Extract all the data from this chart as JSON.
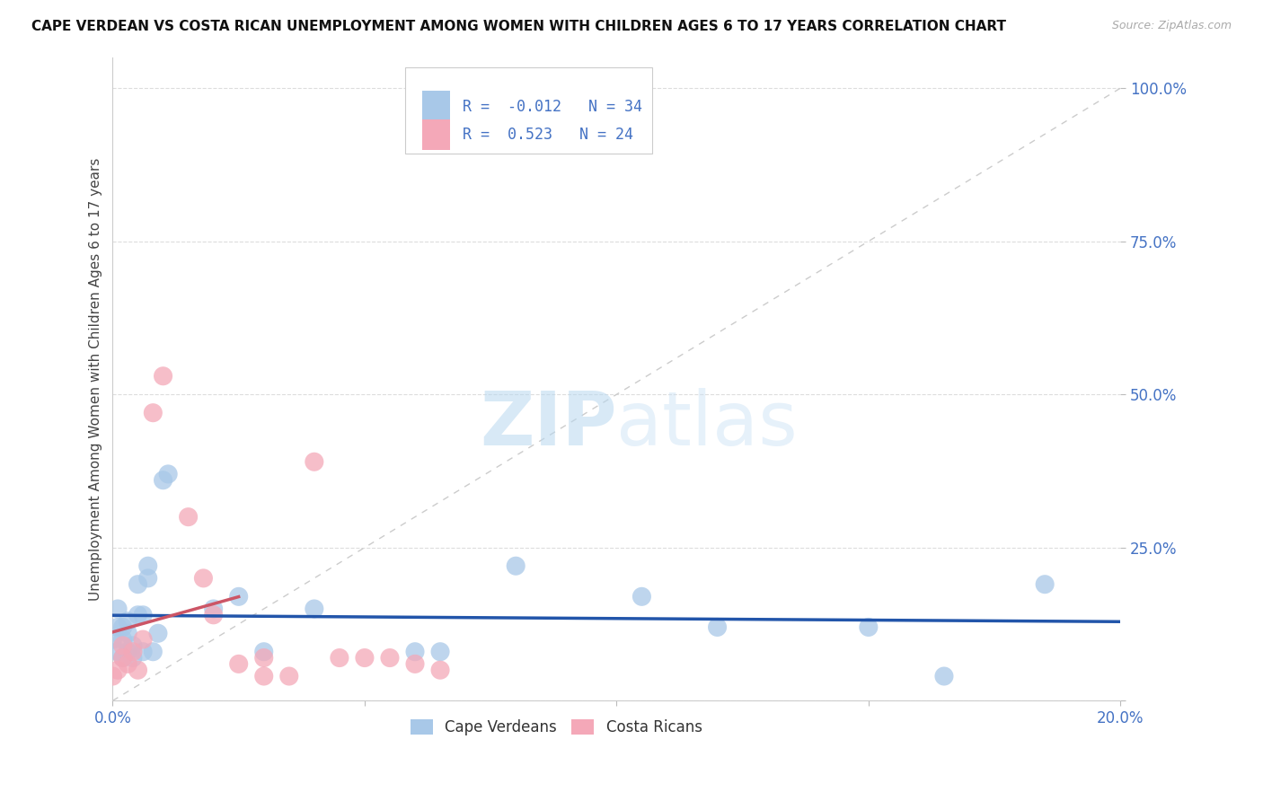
{
  "title": "CAPE VERDEAN VS COSTA RICAN UNEMPLOYMENT AMONG WOMEN WITH CHILDREN AGES 6 TO 17 YEARS CORRELATION CHART",
  "source": "Source: ZipAtlas.com",
  "ylabel": "Unemployment Among Women with Children Ages 6 to 17 years",
  "r_cape_verdean": -0.012,
  "n_cape_verdean": 34,
  "r_costa_rican": 0.523,
  "n_costa_rican": 24,
  "cape_verdean_color": "#a8c8e8",
  "costa_rican_color": "#f4a8b8",
  "trend_cape_verdean_color": "#2255aa",
  "trend_costa_rican_color": "#cc5566",
  "diagonal_color": "#cccccc",
  "cape_verdean_x": [
    0.0,
    0.001,
    0.001,
    0.001,
    0.002,
    0.002,
    0.002,
    0.003,
    0.003,
    0.003,
    0.004,
    0.004,
    0.005,
    0.005,
    0.006,
    0.006,
    0.007,
    0.007,
    0.008,
    0.009,
    0.01,
    0.011,
    0.02,
    0.025,
    0.03,
    0.04,
    0.06,
    0.065,
    0.08,
    0.105,
    0.12,
    0.15,
    0.165,
    0.185
  ],
  "cape_verdean_y": [
    0.1,
    0.08,
    0.12,
    0.15,
    0.07,
    0.1,
    0.12,
    0.08,
    0.11,
    0.13,
    0.07,
    0.09,
    0.14,
    0.19,
    0.08,
    0.14,
    0.2,
    0.22,
    0.08,
    0.11,
    0.36,
    0.37,
    0.15,
    0.17,
    0.08,
    0.15,
    0.08,
    0.08,
    0.22,
    0.17,
    0.12,
    0.12,
    0.04,
    0.19
  ],
  "costa_rican_x": [
    0.0,
    0.001,
    0.002,
    0.002,
    0.003,
    0.004,
    0.005,
    0.006,
    0.008,
    0.01,
    0.015,
    0.018,
    0.02,
    0.025,
    0.03,
    0.03,
    0.035,
    0.04,
    0.045,
    0.05,
    0.055,
    0.06,
    0.065,
    0.07
  ],
  "costa_rican_y": [
    0.04,
    0.05,
    0.07,
    0.09,
    0.06,
    0.08,
    0.05,
    0.1,
    0.47,
    0.53,
    0.3,
    0.2,
    0.14,
    0.06,
    0.04,
    0.07,
    0.04,
    0.39,
    0.07,
    0.07,
    0.07,
    0.06,
    0.05,
    0.97
  ],
  "xlim": [
    0.0,
    0.2
  ],
  "ylim": [
    0.0,
    1.05
  ],
  "xticks": [
    0.0,
    0.05,
    0.1,
    0.15,
    0.2
  ],
  "xticklabels": [
    "0.0%",
    "",
    "",
    "",
    "20.0%"
  ],
  "yticks": [
    0.0,
    0.25,
    0.5,
    0.75,
    1.0
  ],
  "yticklabels": [
    "",
    "25.0%",
    "50.0%",
    "75.0%",
    "100.0%"
  ]
}
